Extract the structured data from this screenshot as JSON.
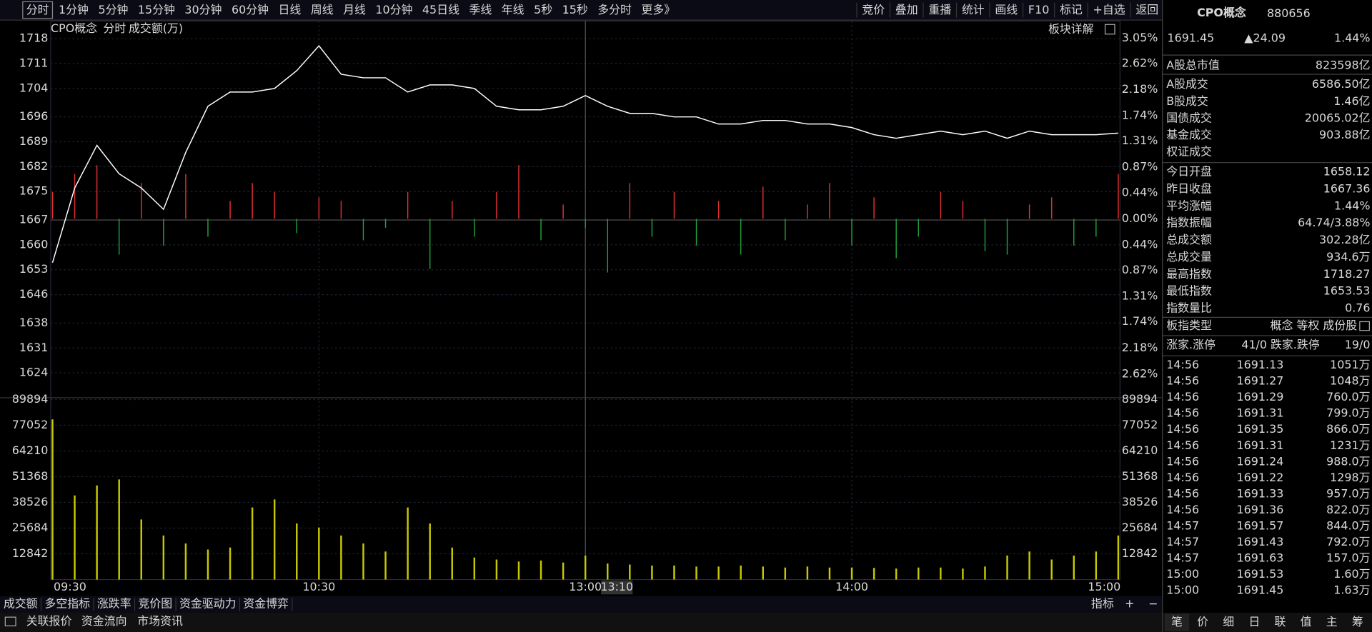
{
  "toolbar": {
    "periods": [
      "分时",
      "1分钟",
      "5分钟",
      "15分钟",
      "30分钟",
      "60分钟",
      "日线",
      "周线",
      "月线",
      "10分钟",
      "45日线",
      "季线",
      "年线",
      "5秒",
      "15秒",
      "多分时",
      "更多》"
    ],
    "tools": [
      "竞价",
      "叠加",
      "重播",
      "统计",
      "画线",
      "F10",
      "标记",
      "+自选",
      "返回"
    ]
  },
  "chart_data": {
    "type": "line",
    "name": "CPO概念",
    "mode": "分时",
    "indicator_label": "成交额(万)",
    "detail_link": "板块详解",
    "categories": [
      "09:30",
      null,
      null,
      null,
      null,
      null,
      null,
      null,
      null,
      null,
      null,
      null,
      "10:30",
      null,
      null,
      null,
      null,
      null,
      null,
      null,
      null,
      null,
      null,
      null,
      "13:00",
      null,
      null,
      null,
      null,
      null,
      null,
      null,
      null,
      null,
      null,
      null,
      "14:00",
      null,
      null,
      null,
      null,
      null,
      null,
      null,
      null,
      null,
      null,
      null,
      "15:00"
    ],
    "cursor_label": "13:10",
    "values": [
      1655,
      1676,
      1688,
      1680,
      1676,
      1670,
      1686,
      1699,
      1703,
      1703,
      1704,
      1709,
      1716,
      1708,
      1707,
      1707,
      1703,
      1705,
      1705,
      1704,
      1699,
      1698,
      1698,
      1699,
      1702,
      1699,
      1697,
      1697,
      1696,
      1696,
      1694,
      1694,
      1695,
      1695,
      1694,
      1694,
      1693,
      1691,
      1690,
      1691,
      1692,
      1691,
      1692,
      1690,
      1692,
      1691,
      1691,
      1691,
      1691.45
    ],
    "color": "#ffffff",
    "ylim": [
      1617,
      1722
    ],
    "yticks": [
      1718,
      1711,
      1704,
      1696,
      1689,
      1682,
      1675,
      1667,
      1660,
      1653,
      1646,
      1638,
      1631,
      1624
    ],
    "y2lim": [
      -3.02,
      3.28
    ],
    "y2ticks": [
      {
        "value": 3.05,
        "label": "3.05%"
      },
      {
        "value": 2.62,
        "label": "2.62%"
      },
      {
        "value": 2.18,
        "label": "2.18%"
      },
      {
        "value": 1.74,
        "label": "1.74%"
      },
      {
        "value": 1.31,
        "label": "1.31%"
      },
      {
        "value": 0.87,
        "label": "0.87%"
      },
      {
        "value": 0.44,
        "label": "0.44%"
      },
      {
        "value": 0,
        "label": "0.00%"
      },
      {
        "value": -0.44,
        "label": "0.44%"
      },
      {
        "value": -0.87,
        "label": "0.87%"
      },
      {
        "value": -1.31,
        "label": "1.31%"
      },
      {
        "value": -1.74,
        "label": "1.74%"
      },
      {
        "value": -2.18,
        "label": "2.18%"
      },
      {
        "value": -2.62,
        "label": "2.62%"
      }
    ],
    "flow": {
      "ylim": [
        -100,
        100
      ],
      "values": [
        15,
        25,
        30,
        -20,
        20,
        -15,
        25,
        -10,
        10,
        20,
        15,
        -8,
        12,
        10,
        -12,
        -5,
        15,
        -28,
        10,
        -10,
        15,
        30,
        -12,
        8,
        -5,
        -30,
        20,
        -10,
        15,
        -15,
        10,
        -20,
        18,
        -12,
        8,
        20,
        -15,
        12,
        -22,
        -10,
        15,
        10,
        -18,
        -20,
        8,
        12,
        -15,
        -10,
        25
      ]
    },
    "volume": {
      "color": "#c8c800",
      "ylim": [
        0,
        90800
      ],
      "yticks": [
        89894,
        77052,
        64210,
        51368,
        38526,
        25684,
        12842
      ],
      "values": [
        80000,
        42000,
        47000,
        50000,
        30000,
        22000,
        18000,
        15000,
        16000,
        36000,
        40000,
        28000,
        26000,
        22000,
        18000,
        14000,
        36000,
        28000,
        16000,
        11000,
        10000,
        9000,
        9500,
        8500,
        12000,
        8000,
        7500,
        7000,
        7000,
        6500,
        6500,
        7000,
        6500,
        6000,
        6500,
        6000,
        6000,
        5800,
        5500,
        6000,
        6000,
        5500,
        6500,
        12000,
        14000,
        10000,
        12000,
        14000,
        22000
      ]
    }
  },
  "quote": {
    "name": "CPO概念",
    "code": "880656",
    "price": "1691.45",
    "change": "▲24.09",
    "pct": "1.44%",
    "market_cap": {
      "label": "A股总市值",
      "value": "823598亿"
    },
    "turnover": [
      {
        "label": "A股成交",
        "value": "6586.50亿"
      },
      {
        "label": "B股成交",
        "value": "1.46亿"
      },
      {
        "label": "国债成交",
        "value": "20065.02亿"
      },
      {
        "label": "基金成交",
        "value": "903.88亿"
      },
      {
        "label": "权证成交"
      }
    ],
    "stats": [
      {
        "label": "今日开盘",
        "value": "1658.12",
        "color": "#33cc33"
      },
      {
        "label": "昨日收盘",
        "value": "1667.36",
        "color": "#e0e0e0"
      },
      {
        "label": "平均涨幅",
        "value": "1.44%",
        "color": "#ff3333"
      },
      {
        "label": "指数振幅",
        "value": "64.74/3.88%",
        "color": "#e0e0e0"
      },
      {
        "label": "总成交额",
        "value": "302.28亿",
        "color": "#e6e600"
      },
      {
        "label": "总成交量",
        "value": "934.6万",
        "color": "#e6e600"
      },
      {
        "label": "最高指数",
        "value": "1718.27",
        "color": "#ff3333"
      },
      {
        "label": "最低指数",
        "value": "1653.53",
        "color": "#33cc33"
      },
      {
        "label": "指数量比",
        "value": "0.76",
        "color": "#33cc33"
      }
    ],
    "type_label": "板指类型",
    "type_value": "概念 等权 成份股",
    "up_label": "涨家.涨停",
    "up_value": "41/0",
    "down_label": "跌家.跌停",
    "down_value": "19/0"
  },
  "trades": [
    [
      "14:56",
      "1691.13",
      "1051万"
    ],
    [
      "14:56",
      "1691.27",
      "1048万"
    ],
    [
      "14:56",
      "1691.29",
      "760.0万"
    ],
    [
      "14:56",
      "1691.31",
      "799.0万"
    ],
    [
      "14:56",
      "1691.35",
      "866.0万"
    ],
    [
      "14:56",
      "1691.31",
      "1231万"
    ],
    [
      "14:56",
      "1691.24",
      "988.0万"
    ],
    [
      "14:56",
      "1691.22",
      "1298万"
    ],
    [
      "14:56",
      "1691.33",
      "957.0万"
    ],
    [
      "14:56",
      "1691.36",
      "822.0万"
    ],
    [
      "14:57",
      "1691.57",
      "844.0万"
    ],
    [
      "14:57",
      "1691.43",
      "792.0万"
    ],
    [
      "14:57",
      "1691.63",
      "157.0万"
    ],
    [
      "15:00",
      "1691.53",
      "1.60万"
    ],
    [
      "15:00",
      "1691.45",
      "1.63万"
    ]
  ],
  "side_tabs": [
    "笔",
    "价",
    "细",
    "日",
    "联",
    "值",
    "主",
    "筹"
  ],
  "indicator_tabs": [
    "成交额",
    "多空指标",
    "涨跌率",
    "竞价图",
    "资金驱动力",
    "资金博弈"
  ],
  "indicator_tools": [
    "指标",
    "+",
    "−"
  ],
  "footer_tabs": [
    "关联报价",
    "资金流向",
    "市场资讯"
  ]
}
